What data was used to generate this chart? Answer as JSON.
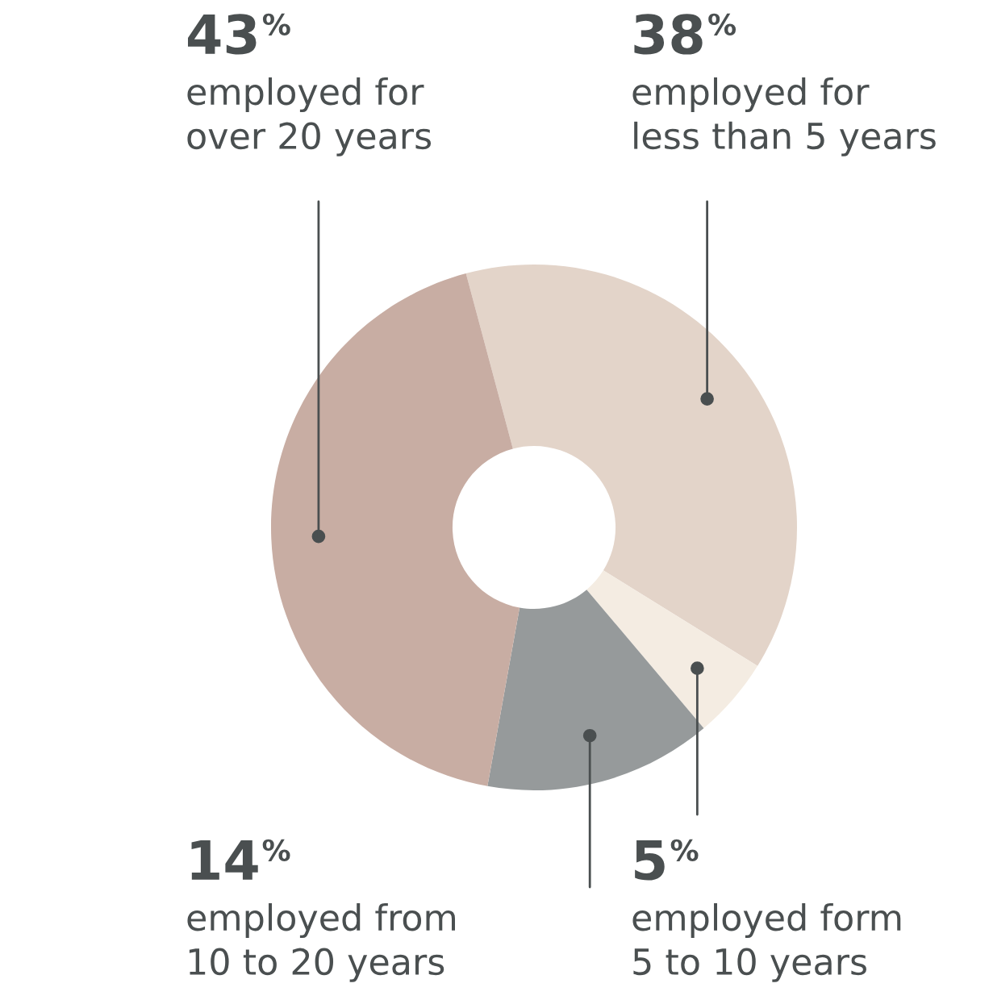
{
  "chart_data": {
    "type": "donut",
    "categories": [
      "employed for\nless than 5 years",
      "employed form\n5 to 10 years",
      "employed from\n10 to 20 years",
      "employed for\nover 20 years"
    ],
    "values": [
      38,
      5,
      14,
      43
    ],
    "colors": [
      "#e3d4c9",
      "#f4ece2",
      "#969a9b",
      "#c8ada3"
    ],
    "value_labels": [
      "38$^{%}$",
      "5$^{%}$",
      "14$^{%}$",
      "43$^{%}$"
    ],
    "legend": false
  }
}
